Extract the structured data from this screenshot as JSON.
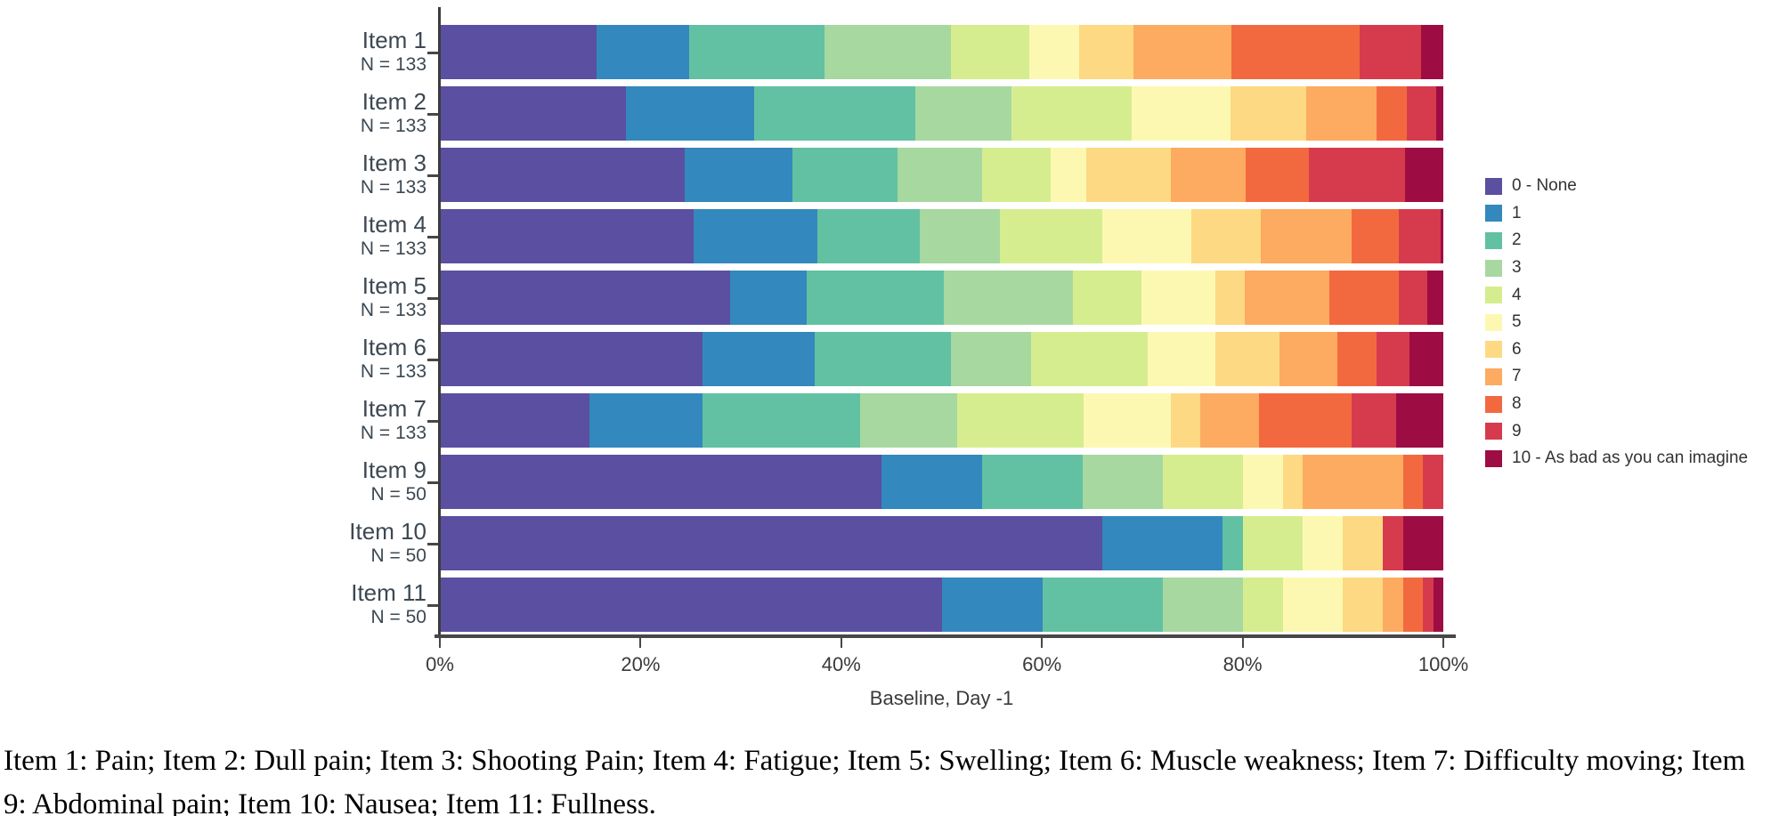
{
  "chart_data": {
    "type": "bar",
    "orientation": "horizontal_stacked",
    "xlabel": "Baseline, Day -1",
    "xlim": [
      0,
      100
    ],
    "x_ticks": [
      {
        "value": 0,
        "label": "0%"
      },
      {
        "value": 20,
        "label": "20%"
      },
      {
        "value": 40,
        "label": "40%"
      },
      {
        "value": 60,
        "label": "60%"
      },
      {
        "value": 80,
        "label": "80%"
      },
      {
        "value": 100,
        "label": "100%"
      }
    ],
    "legend_position": "right",
    "legend": [
      {
        "label": "0 - None",
        "color": "#5a4fa1"
      },
      {
        "label": "1",
        "color": "#3388bd"
      },
      {
        "label": "2",
        "color": "#62c1a2"
      },
      {
        "label": "3",
        "color": "#a6d8a0"
      },
      {
        "label": "4",
        "color": "#d6ed8f"
      },
      {
        "label": "5",
        "color": "#fcf8b2"
      },
      {
        "label": "6",
        "color": "#fdd983"
      },
      {
        "label": "7",
        "color": "#fcab60"
      },
      {
        "label": "8",
        "color": "#f3693f"
      },
      {
        "label": "9",
        "color": "#d63b4d"
      },
      {
        "label": "10 - As bad as you can imagine",
        "color": "#9e0c44"
      }
    ],
    "series_note": "values are percent of patients per severity score 0-10, per item row",
    "rows": [
      {
        "item": "Item 1",
        "n_label": "N = 133",
        "values": [
          15.5,
          9.3,
          13.5,
          12.6,
          7.8,
          5.0,
          5.4,
          9.8,
          12.8,
          6.1,
          2.2
        ]
      },
      {
        "item": "Item 2",
        "n_label": "N = 133",
        "values": [
          18.5,
          12.8,
          16.0,
          9.6,
          12.0,
          9.9,
          7.5,
          7.0,
          3.1,
          2.9,
          0.7
        ]
      },
      {
        "item": "Item 3",
        "n_label": "N = 133",
        "values": [
          24.3,
          10.8,
          10.5,
          8.4,
          6.8,
          3.6,
          8.4,
          7.5,
          6.3,
          9.6,
          3.8
        ]
      },
      {
        "item": "Item 4",
        "n_label": "N = 133",
        "values": [
          25.2,
          12.4,
          10.2,
          8.0,
          10.2,
          8.9,
          6.9,
          9.1,
          4.7,
          4.1,
          0.3
        ]
      },
      {
        "item": "Item 5",
        "n_label": "N = 133",
        "values": [
          28.9,
          7.6,
          13.7,
          12.9,
          6.8,
          7.4,
          2.9,
          8.4,
          7.0,
          2.8,
          1.6
        ]
      },
      {
        "item": "Item 6",
        "n_label": "N = 133",
        "values": [
          26.1,
          11.2,
          13.6,
          8.0,
          11.6,
          6.8,
          6.4,
          5.7,
          3.9,
          3.3,
          3.4
        ]
      },
      {
        "item": "Item 7",
        "n_label": "N = 133",
        "values": [
          14.8,
          11.3,
          15.7,
          9.7,
          12.6,
          8.7,
          3.0,
          5.8,
          9.3,
          4.4,
          4.7
        ]
      },
      {
        "item": "Item 9",
        "n_label": "N = 50",
        "values": [
          44.0,
          10.0,
          10.0,
          8.0,
          8.0,
          4.0,
          2.0,
          10.0,
          2.0,
          2.0,
          0.0
        ]
      },
      {
        "item": "Item 10",
        "n_label": "N = 50",
        "values": [
          66.0,
          12.0,
          2.0,
          0.0,
          6.0,
          4.0,
          4.0,
          0.0,
          0.0,
          2.0,
          4.0
        ]
      },
      {
        "item": "Item 11",
        "n_label": "N = 50",
        "values": [
          50.0,
          10.0,
          12.0,
          8.0,
          4.0,
          6.0,
          4.0,
          2.0,
          2.0,
          1.0,
          1.0
        ]
      }
    ]
  },
  "caption": {
    "text": "Item 1: Pain; Item 2: Dull pain; Item 3: Shooting Pain; Item 4: Fatigue; Item 5: Swelling; Item 6: Muscle weakness; Item 7: Difficulty moving; Item 9: Abdominal pain; Item 10: Nausea; Item 11: Fullness."
  }
}
